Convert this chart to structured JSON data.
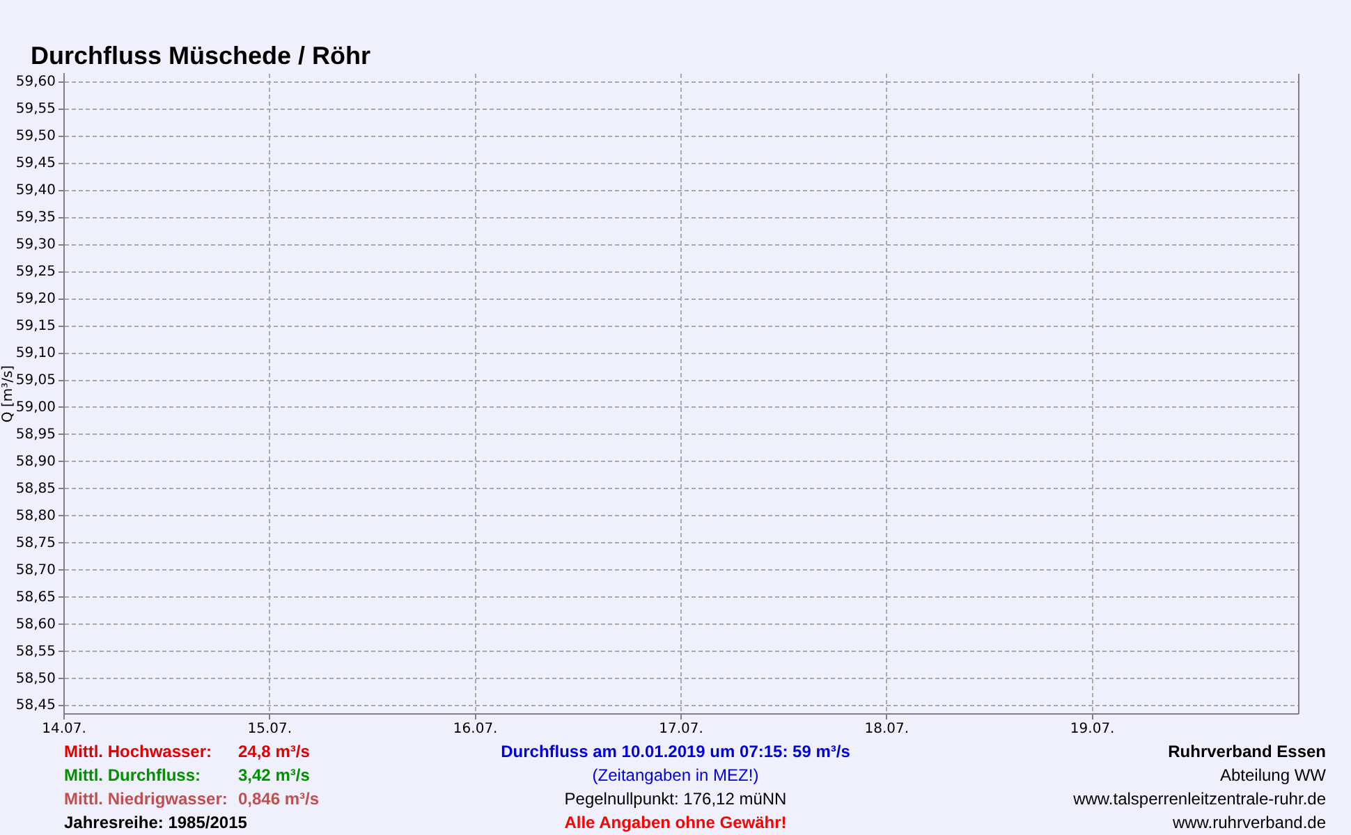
{
  "chart_data": {
    "type": "line",
    "title": "Durchfluss Müschede / Röhr",
    "ylabel": "Q [m³/s]",
    "xlim": [
      "--07-14",
      "--07-20"
    ],
    "xticks": [
      {
        "value": "--07-14",
        "label": "14.07."
      },
      {
        "value": "--07-15",
        "label": "15.07."
      },
      {
        "value": "--07-16",
        "label": "16.07."
      },
      {
        "value": "--07-17",
        "label": "17.07."
      },
      {
        "value": "--07-18",
        "label": "18.07."
      },
      {
        "value": "--07-19",
        "label": "19.07."
      }
    ],
    "ylim": [
      58.435,
      59.615
    ],
    "yticks": [
      {
        "value": 58.45,
        "label": "58,45"
      },
      {
        "value": 58.5,
        "label": "58,50"
      },
      {
        "value": 58.55,
        "label": "58,55"
      },
      {
        "value": 58.6,
        "label": "58,60"
      },
      {
        "value": 58.65,
        "label": "58,65"
      },
      {
        "value": 58.7,
        "label": "58,70"
      },
      {
        "value": 58.75,
        "label": "58,75"
      },
      {
        "value": 58.8,
        "label": "58,80"
      },
      {
        "value": 58.85,
        "label": "58,85"
      },
      {
        "value": 58.9,
        "label": "58,90"
      },
      {
        "value": 58.95,
        "label": "58,95"
      },
      {
        "value": 59.0,
        "label": "59,00"
      },
      {
        "value": 59.05,
        "label": "59,05"
      },
      {
        "value": 59.1,
        "label": "59,10"
      },
      {
        "value": 59.15,
        "label": "59,15"
      },
      {
        "value": 59.2,
        "label": "59,20"
      },
      {
        "value": 59.25,
        "label": "59,25"
      },
      {
        "value": 59.3,
        "label": "59,30"
      },
      {
        "value": 59.35,
        "label": "59,35"
      },
      {
        "value": 59.4,
        "label": "59,40"
      },
      {
        "value": 59.45,
        "label": "59,45"
      },
      {
        "value": 59.5,
        "label": "59,50"
      },
      {
        "value": 59.55,
        "label": "59,55"
      },
      {
        "value": 59.6,
        "label": "59,60"
      }
    ],
    "grid": true,
    "legend": false,
    "annotations": [
      "Mittl. Hochwasser:",
      "24,8 m³/s",
      "Mittl. Durchfluss:",
      "3,42 m³/s",
      "Mittl. Niedrigwasser:",
      "0,846 m³/s",
      "Jahresreihe: 1985/2015",
      "Durchfluss am 10.01.2019 um 07:15: 59 m³/s",
      "(Zeitangaben in MEZ!)",
      "Pegelnullpunkt: 176,12 müNN",
      "Alle Angaben ohne Gewähr!",
      "Ruhrverband Essen",
      "Abteilung WW",
      "www.talsperrenleitzentrale-ruhr.de",
      "www.ruhrverband.de"
    ]
  }
}
